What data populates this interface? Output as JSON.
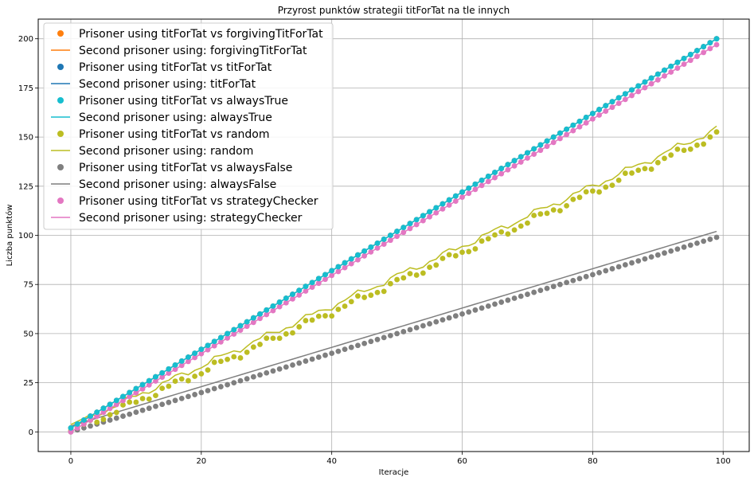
{
  "chart_data": {
    "type": "scatter",
    "title": "Przyrost punktów strategii titForTat na tle innych",
    "xlabel": "Iteracje",
    "ylabel": "Liczba punktów",
    "xlim": [
      -5,
      104
    ],
    "ylim": [
      -10,
      210
    ],
    "xticks": [
      0,
      20,
      40,
      60,
      80,
      100
    ],
    "yticks": [
      0,
      25,
      50,
      75,
      100,
      125,
      150,
      175,
      200
    ],
    "grid": true,
    "legend_position": "top-left",
    "x": {
      "start": 0,
      "end": 99,
      "step": 1
    },
    "series": [
      {
        "key": "forgiving",
        "color": "#ff7f0e",
        "scatter_name": "Prisoner using titForTat vs forgivingTitForTat",
        "line_name": "Second prisoner using: forgivingTitForTat",
        "scatter": {
          "start": 2,
          "end": 200
        },
        "line": {
          "start": 2,
          "end": 200
        }
      },
      {
        "key": "titfortat",
        "color": "#1f77b4",
        "scatter_name": "Prisoner using titForTat vs titForTat",
        "line_name": "Second prisoner using: titForTat",
        "scatter": {
          "start": 2,
          "end": 200
        },
        "line": {
          "start": 2,
          "end": 200
        }
      },
      {
        "key": "alwaystrue",
        "color": "#17becf",
        "scatter_name": "Prisoner using titForTat vs alwaysTrue",
        "line_name": "Second prisoner using: alwaysTrue",
        "scatter": {
          "start": 2,
          "end": 200
        },
        "line": {
          "start": 2,
          "end": 200
        }
      },
      {
        "key": "random",
        "color": "#bcbd22",
        "scatter_name": "Prisoner using titForTat vs random",
        "line_name": "Second prisoner using: random",
        "scatter": {
          "start": 0,
          "end": 151
        },
        "line": {
          "start": 3,
          "end": 154
        }
      },
      {
        "key": "alwaysfalse",
        "color": "#7f7f7f",
        "scatter_name": "Prisoner using titForTat vs alwaysFalse",
        "line_name": "Second prisoner using: alwaysFalse",
        "scatter": {
          "start": 0,
          "end": 99
        },
        "line": {
          "start": 3,
          "end": 102
        }
      },
      {
        "key": "strategychecker",
        "color": "#e377c2",
        "scatter_name": "Prisoner using titForTat vs strategyChecker",
        "line_name": "Second prisoner using: strategyChecker",
        "scatter": {
          "start": 0,
          "end": 197
        },
        "line": {
          "start": 0,
          "end": 197
        }
      }
    ]
  }
}
